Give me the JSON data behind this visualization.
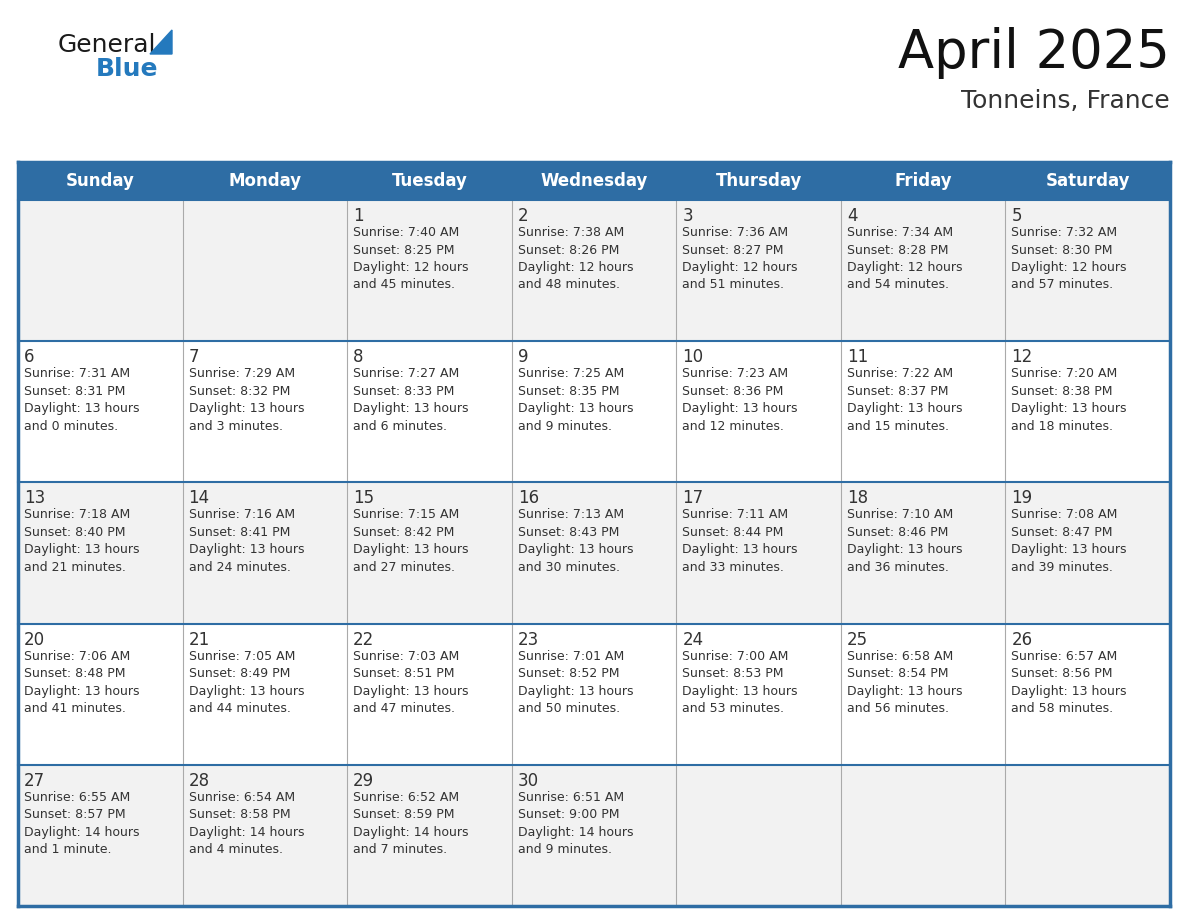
{
  "title": "April 2025",
  "subtitle": "Tonneins, France",
  "header_color": "#2E6DA4",
  "header_text_color": "#FFFFFF",
  "row_bg_odd": "#F2F2F2",
  "row_bg_even": "#FFFFFF",
  "border_color": "#2E6DA4",
  "cell_border_color": "#AAAAAA",
  "text_color": "#333333",
  "days_of_week": [
    "Sunday",
    "Monday",
    "Tuesday",
    "Wednesday",
    "Thursday",
    "Friday",
    "Saturday"
  ],
  "weeks": [
    [
      {
        "day": "",
        "text": ""
      },
      {
        "day": "",
        "text": ""
      },
      {
        "day": "1",
        "text": "Sunrise: 7:40 AM\nSunset: 8:25 PM\nDaylight: 12 hours\nand 45 minutes."
      },
      {
        "day": "2",
        "text": "Sunrise: 7:38 AM\nSunset: 8:26 PM\nDaylight: 12 hours\nand 48 minutes."
      },
      {
        "day": "3",
        "text": "Sunrise: 7:36 AM\nSunset: 8:27 PM\nDaylight: 12 hours\nand 51 minutes."
      },
      {
        "day": "4",
        "text": "Sunrise: 7:34 AM\nSunset: 8:28 PM\nDaylight: 12 hours\nand 54 minutes."
      },
      {
        "day": "5",
        "text": "Sunrise: 7:32 AM\nSunset: 8:30 PM\nDaylight: 12 hours\nand 57 minutes."
      }
    ],
    [
      {
        "day": "6",
        "text": "Sunrise: 7:31 AM\nSunset: 8:31 PM\nDaylight: 13 hours\nand 0 minutes."
      },
      {
        "day": "7",
        "text": "Sunrise: 7:29 AM\nSunset: 8:32 PM\nDaylight: 13 hours\nand 3 minutes."
      },
      {
        "day": "8",
        "text": "Sunrise: 7:27 AM\nSunset: 8:33 PM\nDaylight: 13 hours\nand 6 minutes."
      },
      {
        "day": "9",
        "text": "Sunrise: 7:25 AM\nSunset: 8:35 PM\nDaylight: 13 hours\nand 9 minutes."
      },
      {
        "day": "10",
        "text": "Sunrise: 7:23 AM\nSunset: 8:36 PM\nDaylight: 13 hours\nand 12 minutes."
      },
      {
        "day": "11",
        "text": "Sunrise: 7:22 AM\nSunset: 8:37 PM\nDaylight: 13 hours\nand 15 minutes."
      },
      {
        "day": "12",
        "text": "Sunrise: 7:20 AM\nSunset: 8:38 PM\nDaylight: 13 hours\nand 18 minutes."
      }
    ],
    [
      {
        "day": "13",
        "text": "Sunrise: 7:18 AM\nSunset: 8:40 PM\nDaylight: 13 hours\nand 21 minutes."
      },
      {
        "day": "14",
        "text": "Sunrise: 7:16 AM\nSunset: 8:41 PM\nDaylight: 13 hours\nand 24 minutes."
      },
      {
        "day": "15",
        "text": "Sunrise: 7:15 AM\nSunset: 8:42 PM\nDaylight: 13 hours\nand 27 minutes."
      },
      {
        "day": "16",
        "text": "Sunrise: 7:13 AM\nSunset: 8:43 PM\nDaylight: 13 hours\nand 30 minutes."
      },
      {
        "day": "17",
        "text": "Sunrise: 7:11 AM\nSunset: 8:44 PM\nDaylight: 13 hours\nand 33 minutes."
      },
      {
        "day": "18",
        "text": "Sunrise: 7:10 AM\nSunset: 8:46 PM\nDaylight: 13 hours\nand 36 minutes."
      },
      {
        "day": "19",
        "text": "Sunrise: 7:08 AM\nSunset: 8:47 PM\nDaylight: 13 hours\nand 39 minutes."
      }
    ],
    [
      {
        "day": "20",
        "text": "Sunrise: 7:06 AM\nSunset: 8:48 PM\nDaylight: 13 hours\nand 41 minutes."
      },
      {
        "day": "21",
        "text": "Sunrise: 7:05 AM\nSunset: 8:49 PM\nDaylight: 13 hours\nand 44 minutes."
      },
      {
        "day": "22",
        "text": "Sunrise: 7:03 AM\nSunset: 8:51 PM\nDaylight: 13 hours\nand 47 minutes."
      },
      {
        "day": "23",
        "text": "Sunrise: 7:01 AM\nSunset: 8:52 PM\nDaylight: 13 hours\nand 50 minutes."
      },
      {
        "day": "24",
        "text": "Sunrise: 7:00 AM\nSunset: 8:53 PM\nDaylight: 13 hours\nand 53 minutes."
      },
      {
        "day": "25",
        "text": "Sunrise: 6:58 AM\nSunset: 8:54 PM\nDaylight: 13 hours\nand 56 minutes."
      },
      {
        "day": "26",
        "text": "Sunrise: 6:57 AM\nSunset: 8:56 PM\nDaylight: 13 hours\nand 58 minutes."
      }
    ],
    [
      {
        "day": "27",
        "text": "Sunrise: 6:55 AM\nSunset: 8:57 PM\nDaylight: 14 hours\nand 1 minute."
      },
      {
        "day": "28",
        "text": "Sunrise: 6:54 AM\nSunset: 8:58 PM\nDaylight: 14 hours\nand 4 minutes."
      },
      {
        "day": "29",
        "text": "Sunrise: 6:52 AM\nSunset: 8:59 PM\nDaylight: 14 hours\nand 7 minutes."
      },
      {
        "day": "30",
        "text": "Sunrise: 6:51 AM\nSunset: 9:00 PM\nDaylight: 14 hours\nand 9 minutes."
      },
      {
        "day": "",
        "text": ""
      },
      {
        "day": "",
        "text": ""
      },
      {
        "day": "",
        "text": ""
      }
    ]
  ],
  "logo_general_color": "#1a1a1a",
  "logo_blue_color": "#2479BD",
  "logo_triangle_color": "#2479BD",
  "title_fontsize": 38,
  "subtitle_fontsize": 18,
  "dow_fontsize": 12,
  "day_num_fontsize": 12,
  "cell_text_fontsize": 9
}
